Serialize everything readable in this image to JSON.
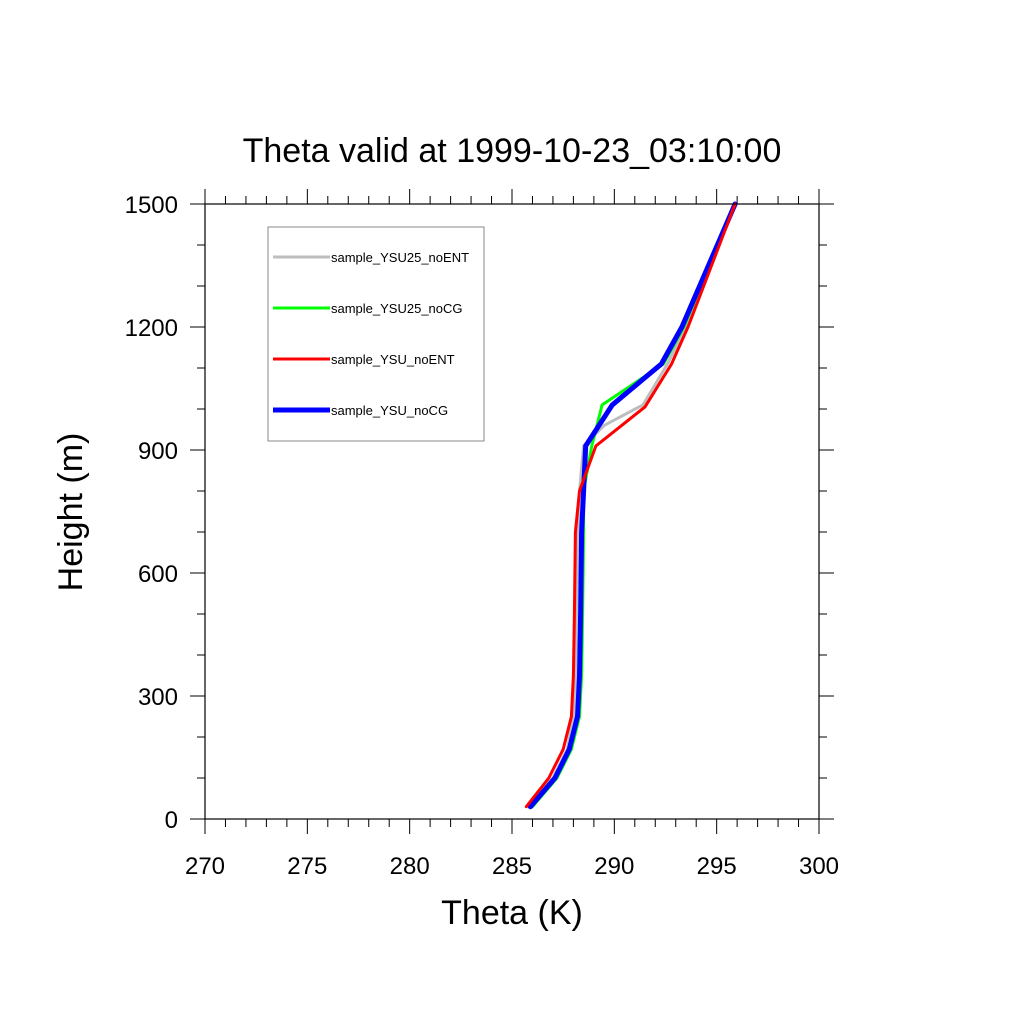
{
  "chart_data": {
    "type": "line",
    "title": "Theta valid at 1999-10-23_03:10:00",
    "xlabel": "Theta (K)",
    "ylabel": "Height (m)",
    "xlim": [
      270,
      300
    ],
    "ylim": [
      0,
      1500
    ],
    "xticks": [
      270,
      275,
      280,
      285,
      290,
      295,
      300
    ],
    "yticks": [
      0,
      300,
      600,
      900,
      1200,
      1500
    ],
    "xminor_step": 1,
    "yminor_step": 100,
    "grid": false,
    "legend": "top-left",
    "series": [
      {
        "name": "sample_YSU25_noENT",
        "color": "#bdbdbd",
        "width": 3,
        "x": [
          285.8,
          287.0,
          287.7,
          288.0,
          288.1,
          288.15,
          288.2,
          288.3,
          288.5,
          289.5,
          291.4,
          292.6,
          293.5,
          295.9
        ],
        "y": [
          30,
          100,
          170,
          250,
          350,
          500,
          700,
          800,
          910,
          960,
          1010,
          1110,
          1200,
          1500
        ]
      },
      {
        "name": "sample_YSU25_noCG",
        "color": "#00ff00",
        "width": 3,
        "x": [
          286.0,
          287.2,
          287.9,
          288.3,
          288.4,
          288.45,
          288.5,
          288.5,
          288.9,
          289.4,
          292.4,
          293.4,
          295.9
        ],
        "y": [
          30,
          100,
          170,
          250,
          350,
          500,
          700,
          800,
          910,
          1010,
          1110,
          1200,
          1500
        ]
      },
      {
        "name": "sample_YSU_noENT",
        "color": "#ff0000",
        "width": 3,
        "x": [
          285.7,
          286.8,
          287.5,
          287.9,
          288.0,
          288.05,
          288.1,
          288.3,
          289.1,
          291.5,
          292.8,
          293.6,
          295.9
        ],
        "y": [
          30,
          100,
          170,
          250,
          350,
          500,
          700,
          800,
          910,
          1005,
          1110,
          1200,
          1500
        ]
      },
      {
        "name": "sample_YSU_noCG",
        "color": "#0000ff",
        "width": 5,
        "x": [
          285.9,
          287.1,
          287.8,
          288.2,
          288.3,
          288.35,
          288.4,
          288.5,
          288.6,
          289.9,
          292.3,
          293.3,
          295.9
        ],
        "y": [
          30,
          100,
          170,
          250,
          350,
          500,
          700,
          800,
          910,
          1010,
          1110,
          1200,
          1500
        ]
      }
    ]
  }
}
